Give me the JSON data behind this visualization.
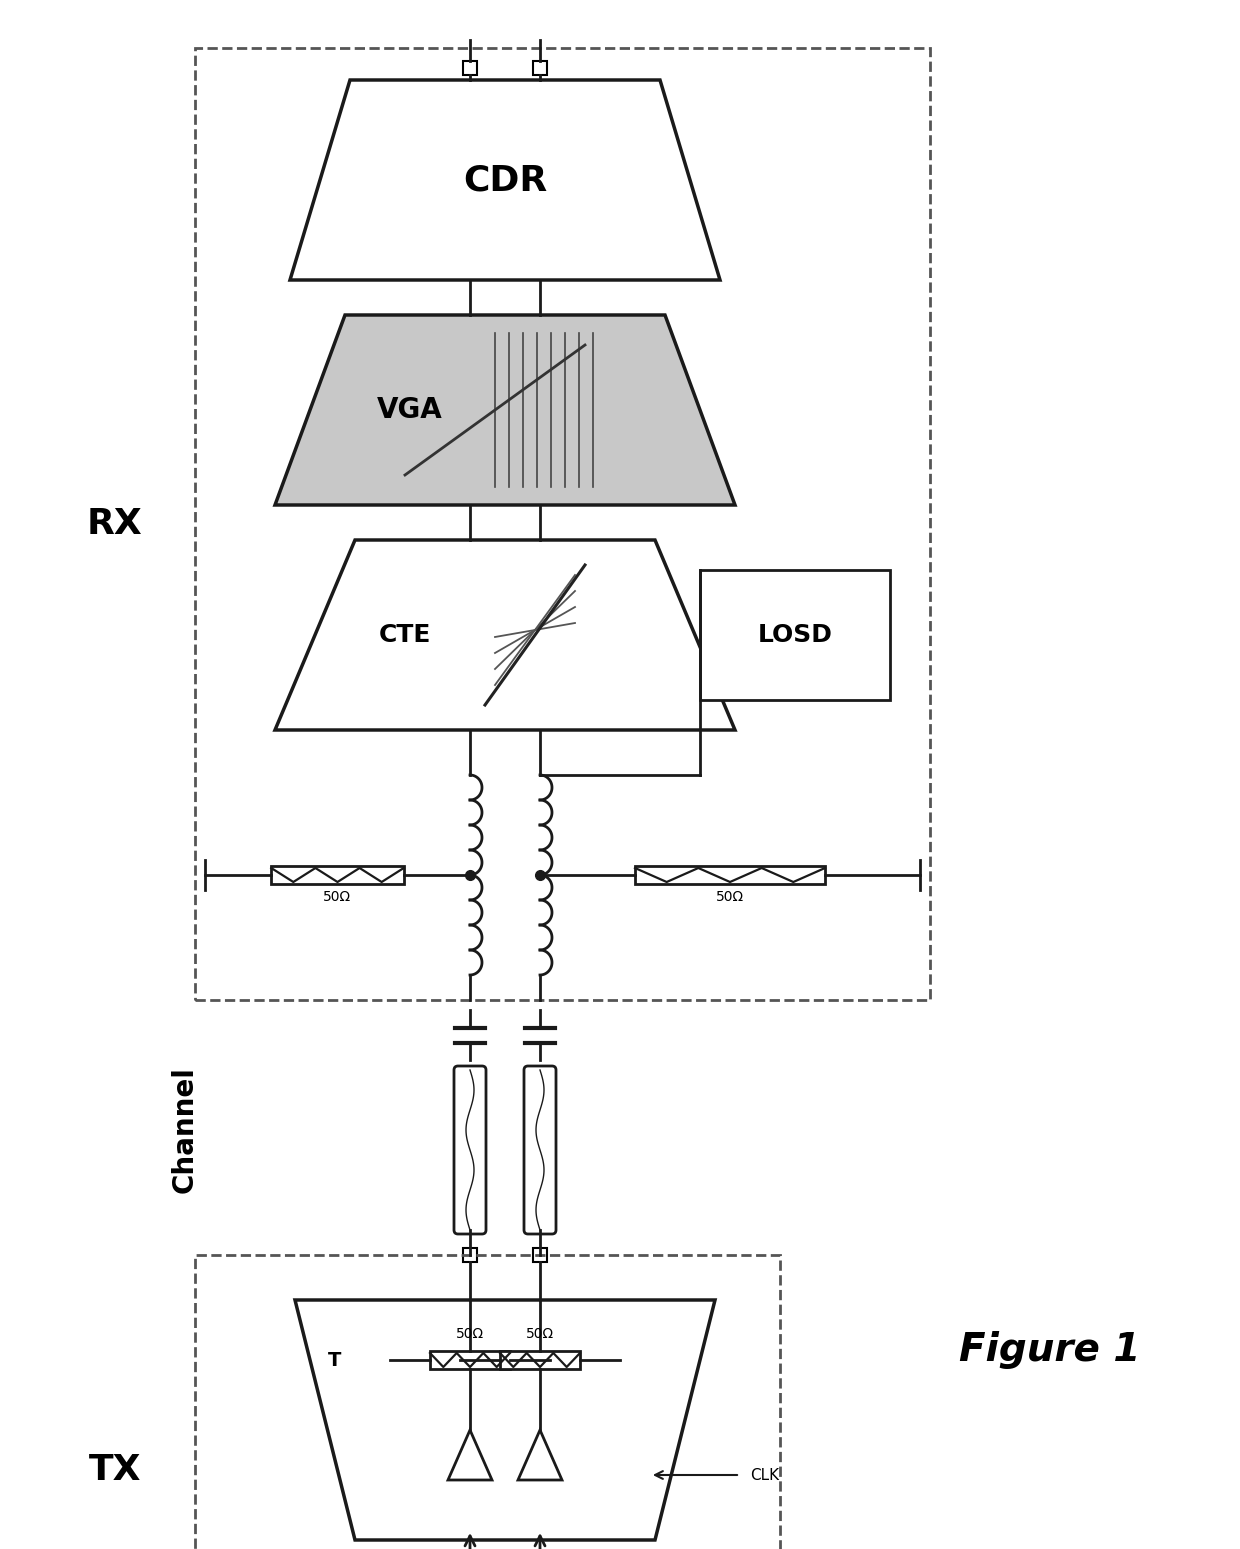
{
  "bg_color": "#ffffff",
  "line_color": "#1a1a1a",
  "dash_color": "#555555",
  "vga_fill": "#c8c8c8",
  "white_fill": "#ffffff",
  "rx_label": "RX",
  "tx_label": "TX",
  "channel_label": "Channel",
  "figure_label": "Figure 1",
  "cdr_label": "CDR",
  "vga_label": "VGA",
  "cte_label": "CTE",
  "losd_label": "LOSD",
  "clk_label": "CLK",
  "t_label": "T",
  "r50_label": "50Ω",
  "figsize": [
    12.4,
    15.49
  ],
  "dpi": 100
}
